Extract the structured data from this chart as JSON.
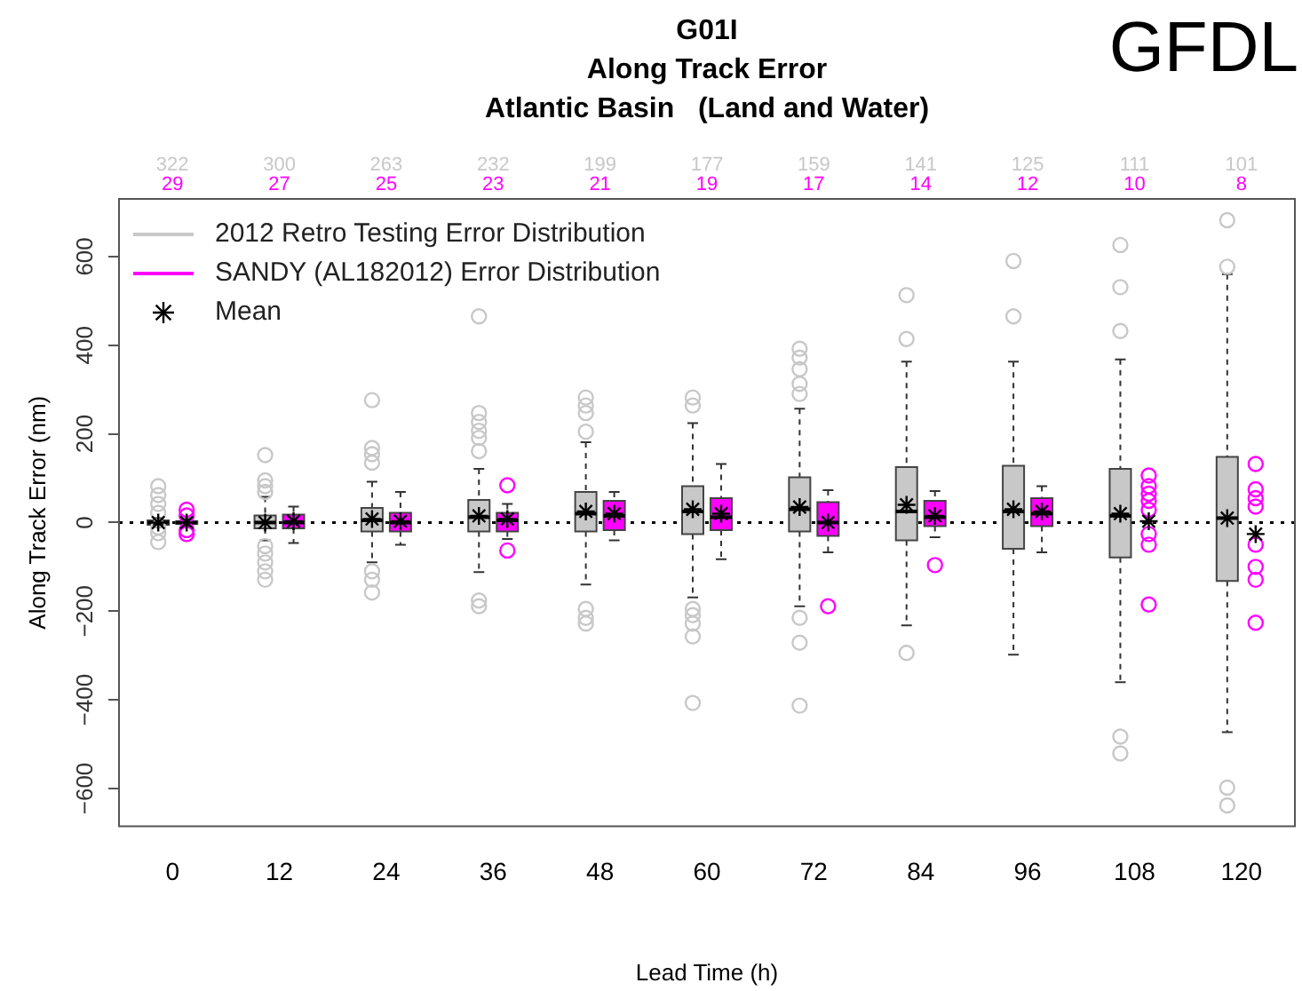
{
  "chart_data": {
    "type": "box",
    "title": "G01I",
    "subtitle": "Along Track Error\nAtlantic Basin   (Land and Water)",
    "xlabel": "Lead Time (h)",
    "ylabel": "Along Track Error (nm)",
    "annotations": [
      "GFDL",
      "Mean"
    ],
    "categories": [
      "0",
      "12",
      "24",
      "36",
      "48",
      "60",
      "72",
      "84",
      "96",
      "108",
      "120"
    ],
    "ylim": [
      -685,
      730
    ],
    "yticks": [
      -600,
      -400,
      -200,
      0,
      200,
      400,
      600
    ],
    "grid": false,
    "legend": "top left",
    "ref_lines": [
      {
        "axis": "y",
        "value": 0,
        "line_style": "dotted",
        "color": "#000000"
      }
    ],
    "series": [
      {
        "name": "2012 Retro Testing Error Distribution",
        "color": "#c8c8c8",
        "value_labels": [
          "322",
          "300",
          "263",
          "232",
          "199",
          "177",
          "159",
          "141",
          "125",
          "111",
          "101"
        ],
        "boxes": [
          {
            "low": -10,
            "q1": -5,
            "median": 0,
            "q3": 5,
            "high": 10,
            "mean": 0,
            "outliers": [
              82,
              62,
              42,
              22,
              -11,
              -24,
              -44
            ]
          },
          {
            "low": -40,
            "q1": -13,
            "median": 0,
            "q3": 16,
            "high": 58,
            "mean": 0,
            "outliers": [
              152,
              95,
              82,
              69,
              -53,
              -70,
              -90,
              -110,
              -129
            ]
          },
          {
            "low": -90,
            "q1": -20,
            "median": 5,
            "q3": 33,
            "high": 92,
            "mean": 8,
            "outliers": [
              276,
              168,
              154,
              135,
              -110,
              -129,
              -158
            ]
          },
          {
            "low": -112,
            "q1": -20,
            "median": 12,
            "q3": 51,
            "high": 121,
            "mean": 15,
            "outliers": [
              465,
              247,
              227,
              207,
              191,
              161,
              -176,
              -189
            ]
          },
          {
            "low": -140,
            "q1": -20,
            "median": 20,
            "q3": 69,
            "high": 181,
            "mean": 25,
            "outliers": [
              282,
              264,
              247,
              205,
              -195,
              -215,
              -228
            ]
          },
          {
            "low": -169,
            "q1": -26,
            "median": 25,
            "q3": 82,
            "high": 224,
            "mean": 30,
            "outliers": [
              282,
              264,
              -195,
              -209,
              -228,
              -257,
              -407
            ]
          },
          {
            "low": -189,
            "q1": -20,
            "median": 30,
            "q3": 102,
            "high": 257,
            "mean": 35,
            "outliers": [
              392,
              372,
              346,
              313,
              290,
              -215,
              -271,
              -413
            ]
          },
          {
            "low": -232,
            "q1": -40,
            "median": 25,
            "q3": 125,
            "high": 363,
            "mean": 40,
            "outliers": [
              513,
              414,
              -294
            ]
          },
          {
            "low": -298,
            "q1": -59,
            "median": 25,
            "q3": 128,
            "high": 363,
            "mean": 30,
            "outliers": [
              590,
              465
            ]
          },
          {
            "low": -360,
            "q1": -79,
            "median": 15,
            "q3": 121,
            "high": 368,
            "mean": 20,
            "outliers": [
              626,
              531,
              432,
              -483,
              -521
            ]
          },
          {
            "low": -473,
            "q1": -132,
            "median": 10,
            "q3": 148,
            "high": 560,
            "mean": 10,
            "outliers": [
              682,
              577,
              -598,
              -638
            ]
          }
        ]
      },
      {
        "name": "SANDY (AL182012) Error Distribution",
        "color": "#ff00ff",
        "value_labels": [
          "29",
          "27",
          "25",
          "23",
          "21",
          "19",
          "17",
          "14",
          "12",
          "10",
          "8"
        ],
        "boxes": [
          {
            "low": -8,
            "q1": -3,
            "median": 0,
            "q3": 3,
            "high": 8,
            "mean": 0,
            "outliers": [
              29,
              16,
              -17,
              -26
            ]
          },
          {
            "low": -46,
            "q1": -13,
            "median": 0,
            "q3": 18,
            "high": 36,
            "mean": 3
          },
          {
            "low": -50,
            "q1": -20,
            "median": 0,
            "q3": 22,
            "high": 69,
            "mean": 3
          },
          {
            "low": -37,
            "q1": -20,
            "median": 5,
            "q3": 22,
            "high": 42,
            "mean": 8,
            "outliers": [
              84,
              -63
            ]
          },
          {
            "low": -40,
            "q1": -17,
            "median": 15,
            "q3": 49,
            "high": 69,
            "mean": 20
          },
          {
            "low": -83,
            "q1": -17,
            "median": 12,
            "q3": 55,
            "high": 132,
            "mean": 20
          },
          {
            "low": -67,
            "q1": -30,
            "median": 0,
            "q3": 46,
            "high": 73,
            "mean": 0,
            "outliers": [
              -189
            ]
          },
          {
            "low": -33,
            "q1": -8,
            "median": 12,
            "q3": 49,
            "high": 71,
            "mean": 15,
            "outliers": [
              -96
            ]
          },
          {
            "low": -67,
            "q1": -8,
            "median": 20,
            "q3": 55,
            "high": 82,
            "mean": 25
          },
          null,
          null
        ]
      },
      {
        "type": "scatter",
        "color": "#ff00ff",
        "marker": "circle",
        "x": [
          "108",
          "108",
          "108",
          "108",
          "108",
          "108",
          "108",
          "108",
          "120",
          "120",
          "120",
          "120",
          "120",
          "120",
          "120",
          "120"
        ],
        "values": [
          106,
          82,
          65,
          49,
          29,
          -26,
          -50,
          -185,
          132,
          75,
          55,
          36,
          -50,
          -100,
          -129,
          -226
        ]
      },
      {
        "type": "scatter",
        "color": "#000000",
        "marker": "cross",
        "x": [
          "108",
          "120"
        ],
        "values": [
          3,
          -26
        ]
      }
    ]
  }
}
